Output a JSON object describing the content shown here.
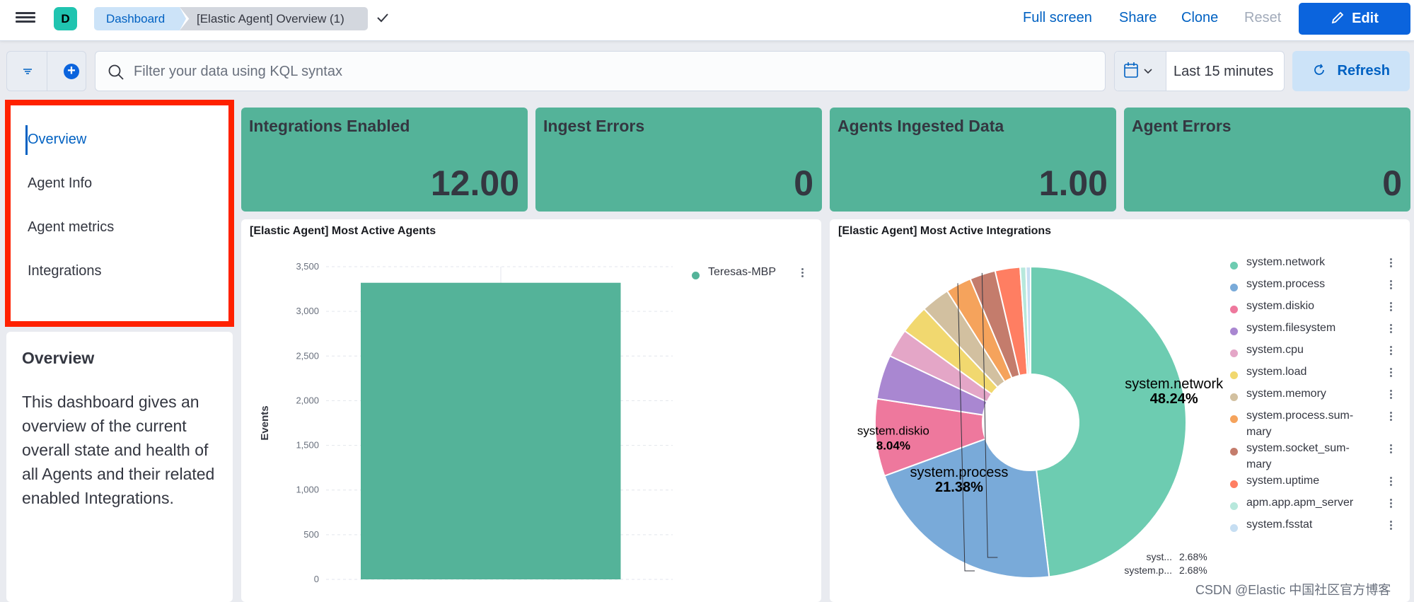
{
  "header": {
    "space_initial": "D",
    "breadcrumbs": [
      "Dashboard",
      "[Elastic Agent] Overview (1)"
    ],
    "actions": {
      "full_screen": "Full screen",
      "share": "Share",
      "clone": "Clone",
      "reset": "Reset",
      "edit": "Edit"
    }
  },
  "query_bar": {
    "placeholder": "Filter your data using KQL syntax",
    "time_range": "Last 15 minutes",
    "refresh": "Refresh"
  },
  "nav": {
    "items": [
      "Overview",
      "Agent Info",
      "Agent metrics",
      "Integrations"
    ],
    "active": "Overview"
  },
  "description": {
    "title": "Overview",
    "text": "This dashboard gives an overview of the current overall state and health of all Agents and their related enabled Integrations."
  },
  "metrics": [
    {
      "title": "Integrations Enabled",
      "value": "12.00"
    },
    {
      "title": "Ingest Errors",
      "value": "0"
    },
    {
      "title": "Agents Ingested Data",
      "value": "1.00"
    },
    {
      "title": "Agent Errors",
      "value": "0"
    }
  ],
  "colors": {
    "accent": "#0061c2",
    "primary_button": "#0b64dd",
    "metric_tile": "#54b399",
    "highlight": "#ff2100"
  },
  "bar_panel": {
    "title": "[Elastic Agent] Most Active Agents"
  },
  "pie_panel": {
    "title": "[Elastic Agent] Most Active Integrations"
  },
  "chart_data": [
    {
      "type": "bar",
      "title": "[Elastic Agent] Most Active Agents",
      "ylabel": "Events",
      "xlabel": "",
      "ylim": [
        0,
        3500
      ],
      "yticks": [
        0,
        500,
        1000,
        1500,
        2000,
        2500,
        3000,
        3500
      ],
      "ytick_labels": [
        "0",
        "500",
        "1,000",
        "1,500",
        "2,000",
        "2,500",
        "3,000",
        "3,500"
      ],
      "categories": [
        "Teresas-MBP"
      ],
      "series": [
        {
          "name": "Teresas-MBP",
          "values": [
            3320
          ],
          "color": "#54b399"
        }
      ],
      "legend": [
        "Teresas-MBP"
      ]
    },
    {
      "type": "pie",
      "title": "[Elastic Agent] Most Active Integrations",
      "donut": true,
      "slices": [
        {
          "label": "system.network",
          "legend": "system.network",
          "value": 48.24,
          "color": "#6dccb1",
          "data_label": "48.24%",
          "inside": true
        },
        {
          "label": "system.process",
          "legend": "system.process",
          "value": 21.38,
          "color": "#79aad9",
          "data_label": "21.38%",
          "inside": true
        },
        {
          "label": "system.diskio",
          "legend": "system.diskio",
          "value": 8.04,
          "color": "#ee789d",
          "data_label": "8.04%",
          "inside": true
        },
        {
          "label": "system.filesystem",
          "legend": "system.filesystem",
          "value": 4.6,
          "color": "#a987d1",
          "data_label": ""
        },
        {
          "label": "system.cpu",
          "legend": "system.cpu",
          "value": 3.0,
          "color": "#e4a6c7",
          "data_label": ""
        },
        {
          "label": "system.load",
          "legend": "system.load",
          "value": 3.0,
          "color": "#f1d86f",
          "data_label": ""
        },
        {
          "label": "system.memory",
          "legend": "system.memory",
          "value": 3.0,
          "color": "#d2c0a0",
          "data_label": ""
        },
        {
          "label": "system.p...",
          "legend": "system.process.sum-mary",
          "value": 2.68,
          "color": "#f5a35c",
          "data_label": "2.68%"
        },
        {
          "label": "syst...",
          "legend": "system.socket_sum-mary",
          "value": 2.68,
          "color": "#c47c6c",
          "data_label": "2.68%"
        },
        {
          "label": "system.uptime",
          "legend": "system.uptime",
          "value": 2.6,
          "color": "#ff7e62",
          "data_label": ""
        },
        {
          "label": "apm.app.apm_server",
          "legend": "apm.app.apm_server",
          "value": 0.6,
          "color": "#b7e8dc",
          "data_label": ""
        },
        {
          "label": "system.fsstat",
          "legend": "system.fsstat",
          "value": 0.48,
          "color": "#c6def2",
          "data_label": ""
        }
      ],
      "legend_lines": [
        [
          "system.network"
        ],
        [
          "system.process"
        ],
        [
          "system.diskio"
        ],
        [
          "system.filesystem"
        ],
        [
          "system.cpu"
        ],
        [
          "system.load"
        ],
        [
          "system.memory"
        ],
        [
          "system.process.sum-",
          "mary"
        ],
        [
          "system.socket_sum-",
          "mary"
        ],
        [
          "system.uptime"
        ],
        [
          "apm.app.apm_server"
        ],
        [
          "system.fsstat"
        ]
      ]
    }
  ],
  "watermark": "CSDN @Elastic 中国社区官方博客"
}
